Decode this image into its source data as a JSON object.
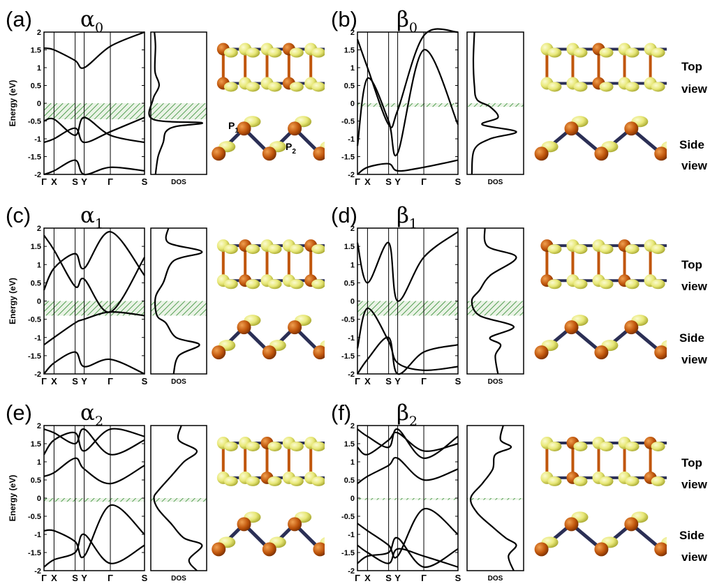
{
  "figure_labels": {
    "side_labels": [
      {
        "id": "b",
        "top": "Top",
        "bottom": "view",
        "side_top": "Side",
        "side_bottom": "view"
      },
      {
        "id": "d",
        "top": "Top",
        "bottom": "view",
        "side_top": "Side",
        "side_bottom": "view"
      },
      {
        "id": "f",
        "top": "Top",
        "bottom": "view",
        "side_top": "Side",
        "side_bottom": "view"
      }
    ],
    "atoms": {
      "p1": "P",
      "p1_sub": "1",
      "p2": "P",
      "p2_sub": "2"
    }
  },
  "chart_data": [
    {
      "id": "a",
      "label": "(a)",
      "name": "α",
      "sub": "0",
      "type": "line",
      "ylabel": "Energy (eV)",
      "ylim": [
        -2,
        2
      ],
      "yticks": [
        "2",
        "1.5",
        "1",
        "0.5",
        "0",
        "-0.5",
        "-1",
        "-1.5",
        "-2"
      ],
      "kpoints": [
        "Γ",
        "X",
        "S",
        "Y",
        "Γ",
        "S"
      ],
      "gap": [
        -0.45,
        0
      ],
      "dos_label": "DOS",
      "bands": [
        [
          1.55,
          1.5,
          1.2,
          1.0,
          1.6,
          2.0
        ],
        [
          -0.5,
          -0.45,
          -0.9,
          -0.4,
          -0.9,
          -1.1
        ],
        [
          -1.1,
          -1.0,
          -0.7,
          -1.1,
          -0.8,
          -0.4
        ],
        [
          -2.0,
          -1.9,
          -1.6,
          -2.1,
          -1.8,
          -1.9
        ]
      ],
      "dos": [
        [
          2,
          0.03
        ],
        [
          1.6,
          0.05
        ],
        [
          0.9,
          0.04
        ],
        [
          0.5,
          0.12
        ],
        [
          0.1,
          0.0
        ],
        [
          -0.45,
          0.0
        ],
        [
          -0.55,
          0.95
        ],
        [
          -0.65,
          0.45
        ],
        [
          -0.8,
          0.25
        ],
        [
          -1.1,
          0.2
        ],
        [
          -1.5,
          0.1
        ],
        [
          -2,
          0.05
        ]
      ]
    },
    {
      "id": "b",
      "label": "(b)",
      "name": "β",
      "sub": "0",
      "type": "line",
      "ylabel": "",
      "ylim": [
        -2,
        2
      ],
      "yticks": [
        "2",
        "1.5",
        "1",
        "0.5",
        "0",
        "-0.5",
        "-1",
        "-1.5",
        "-2"
      ],
      "kpoints": [
        "Γ",
        "X",
        "S",
        "Y",
        "Γ",
        "S"
      ],
      "gap": [
        -0.1,
        0
      ],
      "dos_label": "DOS",
      "bands": [
        [
          -1.2,
          0.7,
          -0.5,
          -1.4,
          1.5,
          -0.6
        ],
        [
          1.8,
          1.0,
          -0.6,
          -0.2,
          1.9,
          2.0
        ],
        [
          -2.0,
          -1.8,
          -1.7,
          -1.9,
          -1.8,
          -1.6
        ]
      ],
      "dos": [
        [
          2,
          0.1
        ],
        [
          1.2,
          0.08
        ],
        [
          0.5,
          0.1
        ],
        [
          0.1,
          0.15
        ],
        [
          -0.1,
          0.4
        ],
        [
          -0.4,
          0.55
        ],
        [
          -0.6,
          0.25
        ],
        [
          -0.8,
          0.9
        ],
        [
          -1.0,
          0.4
        ],
        [
          -1.3,
          0.1
        ],
        [
          -2,
          0.05
        ]
      ]
    },
    {
      "id": "c",
      "label": "(c)",
      "name": "α",
      "sub": "1",
      "type": "line",
      "ylabel": "Energy (eV)",
      "ylim": [
        -2,
        2
      ],
      "yticks": [
        "2",
        "1.5",
        "1",
        "0.5",
        "0",
        "-0.5",
        "-1",
        "-1.5",
        "-2"
      ],
      "kpoints": [
        "Γ",
        "X",
        "S",
        "Y",
        "Γ",
        "S"
      ],
      "gap": [
        -0.4,
        0
      ],
      "dos_label": "DOS",
      "bands": [
        [
          1.8,
          1.4,
          0.4,
          0.6,
          -0.3,
          1.2
        ],
        [
          -1.2,
          -1.0,
          -0.6,
          -0.5,
          -0.3,
          -0.4
        ],
        [
          0.3,
          0.9,
          1.3,
          0.9,
          1.9,
          0.7
        ],
        [
          -2.0,
          -1.7,
          -1.4,
          -1.8,
          -1.6,
          -2.0
        ]
      ],
      "dos": [
        [
          2,
          0.3
        ],
        [
          1.6,
          0.3
        ],
        [
          1.35,
          0.95
        ],
        [
          1.1,
          0.4
        ],
        [
          0.5,
          0.2
        ],
        [
          0.1,
          0.05
        ],
        [
          -0.4,
          0.08
        ],
        [
          -0.6,
          0.25
        ],
        [
          -1.0,
          0.45
        ],
        [
          -1.2,
          0.9
        ],
        [
          -1.5,
          0.5
        ],
        [
          -2,
          0.4
        ]
      ]
    },
    {
      "id": "d",
      "label": "(d)",
      "name": "β",
      "sub": "1",
      "type": "line",
      "ylabel": "",
      "ylim": [
        -2,
        2
      ],
      "yticks": [
        "2",
        "1.5",
        "1",
        "0.5",
        "0",
        "-0.5",
        "-1",
        "-1.5",
        "-2"
      ],
      "kpoints": [
        "Γ",
        "X",
        "S",
        "Y",
        "Γ",
        "S"
      ],
      "gap": [
        -0.4,
        0
      ],
      "dos_label": "DOS",
      "bands": [
        [
          1.6,
          0.5,
          1.6,
          0.0,
          1.2,
          1.9
        ],
        [
          -1.3,
          -0.2,
          -1.1,
          -1.7,
          -1.9,
          -1.8
        ],
        [
          -2.0,
          -1.6,
          -1.0,
          -2.0,
          -1.4,
          -1.2
        ]
      ],
      "dos": [
        [
          2,
          0.3
        ],
        [
          1.5,
          0.35
        ],
        [
          1.2,
          0.9
        ],
        [
          0.7,
          0.4
        ],
        [
          0.3,
          0.2
        ],
        [
          0.0,
          0.05
        ],
        [
          -0.4,
          0.2
        ],
        [
          -0.7,
          0.85
        ],
        [
          -1.0,
          0.4
        ],
        [
          -1.2,
          0.6
        ],
        [
          -1.5,
          0.5
        ],
        [
          -2,
          0.55
        ]
      ]
    },
    {
      "id": "e",
      "label": "(e)",
      "name": "α",
      "sub": "2",
      "type": "line",
      "ylabel": "Energy (eV)",
      "ylim": [
        -2,
        2
      ],
      "yticks": [
        "2",
        "1.5",
        "1",
        "0.5",
        "0",
        "-0.5",
        "-1",
        "-1.5",
        "-2"
      ],
      "kpoints": [
        "Γ",
        "X",
        "S",
        "Y",
        "Γ",
        "S"
      ],
      "gap": [
        -0.1,
        0
      ],
      "dos_label": "DOS",
      "bands": [
        [
          1.2,
          1.6,
          1.8,
          1.3,
          1.9,
          1.7
        ],
        [
          0.6,
          0.7,
          1.1,
          0.8,
          0.4,
          0.9
        ],
        [
          -0.9,
          -0.9,
          -1.2,
          -1.6,
          -0.2,
          -1.0
        ],
        [
          -1.9,
          -1.7,
          -1.5,
          -1.0,
          -1.8,
          -1.3
        ],
        [
          1.9,
          1.8,
          1.5,
          1.9,
          1.2,
          1.6
        ]
      ],
      "dos": [
        [
          2,
          0.55
        ],
        [
          1.6,
          0.5
        ],
        [
          1.3,
          0.85
        ],
        [
          1.0,
          0.6
        ],
        [
          0.6,
          0.35
        ],
        [
          0.2,
          0.1
        ],
        [
          0.0,
          0.02
        ],
        [
          -0.3,
          0.1
        ],
        [
          -0.7,
          0.35
        ],
        [
          -1.1,
          0.6
        ],
        [
          -1.3,
          0.95
        ],
        [
          -1.7,
          0.7
        ],
        [
          -2,
          0.85
        ]
      ]
    },
    {
      "id": "f",
      "label": "(f)",
      "name": "β",
      "sub": "2",
      "type": "line",
      "ylabel": "",
      "ylim": [
        -2,
        2
      ],
      "yticks": [
        "2",
        "1.5",
        "1",
        "0.5",
        "0",
        "-0.5",
        "-1",
        "-1.5",
        "-2"
      ],
      "kpoints": [
        "Γ",
        "X",
        "S",
        "Y",
        "Γ",
        "S"
      ],
      "gap": [
        -0.05,
        0
      ],
      "dos_label": "DOS",
      "bands": [
        [
          1.4,
          1.2,
          1.6,
          1.8,
          1.3,
          1.5
        ],
        [
          0.4,
          0.6,
          0.9,
          1.1,
          0.5,
          0.8
        ],
        [
          -0.7,
          -0.9,
          -1.3,
          -1.6,
          -0.3,
          -1.0
        ],
        [
          -1.8,
          -1.6,
          -1.5,
          -1.1,
          -1.9,
          -1.4
        ],
        [
          1.9,
          1.7,
          1.4,
          1.9,
          1.1,
          1.7
        ],
        [
          -1.3,
          -1.5,
          -1.8,
          -1.4,
          -1.6,
          -1.9
        ]
      ],
      "dos": [
        [
          2,
          0.65
        ],
        [
          1.6,
          0.6
        ],
        [
          1.4,
          0.8
        ],
        [
          1.2,
          0.5
        ],
        [
          0.8,
          0.45
        ],
        [
          0.4,
          0.25
        ],
        [
          0.0,
          0.03
        ],
        [
          -0.4,
          0.15
        ],
        [
          -0.8,
          0.45
        ],
        [
          -1.1,
          0.7
        ],
        [
          -1.3,
          0.9
        ],
        [
          -1.6,
          0.75
        ],
        [
          -2,
          0.85
        ]
      ]
    }
  ]
}
